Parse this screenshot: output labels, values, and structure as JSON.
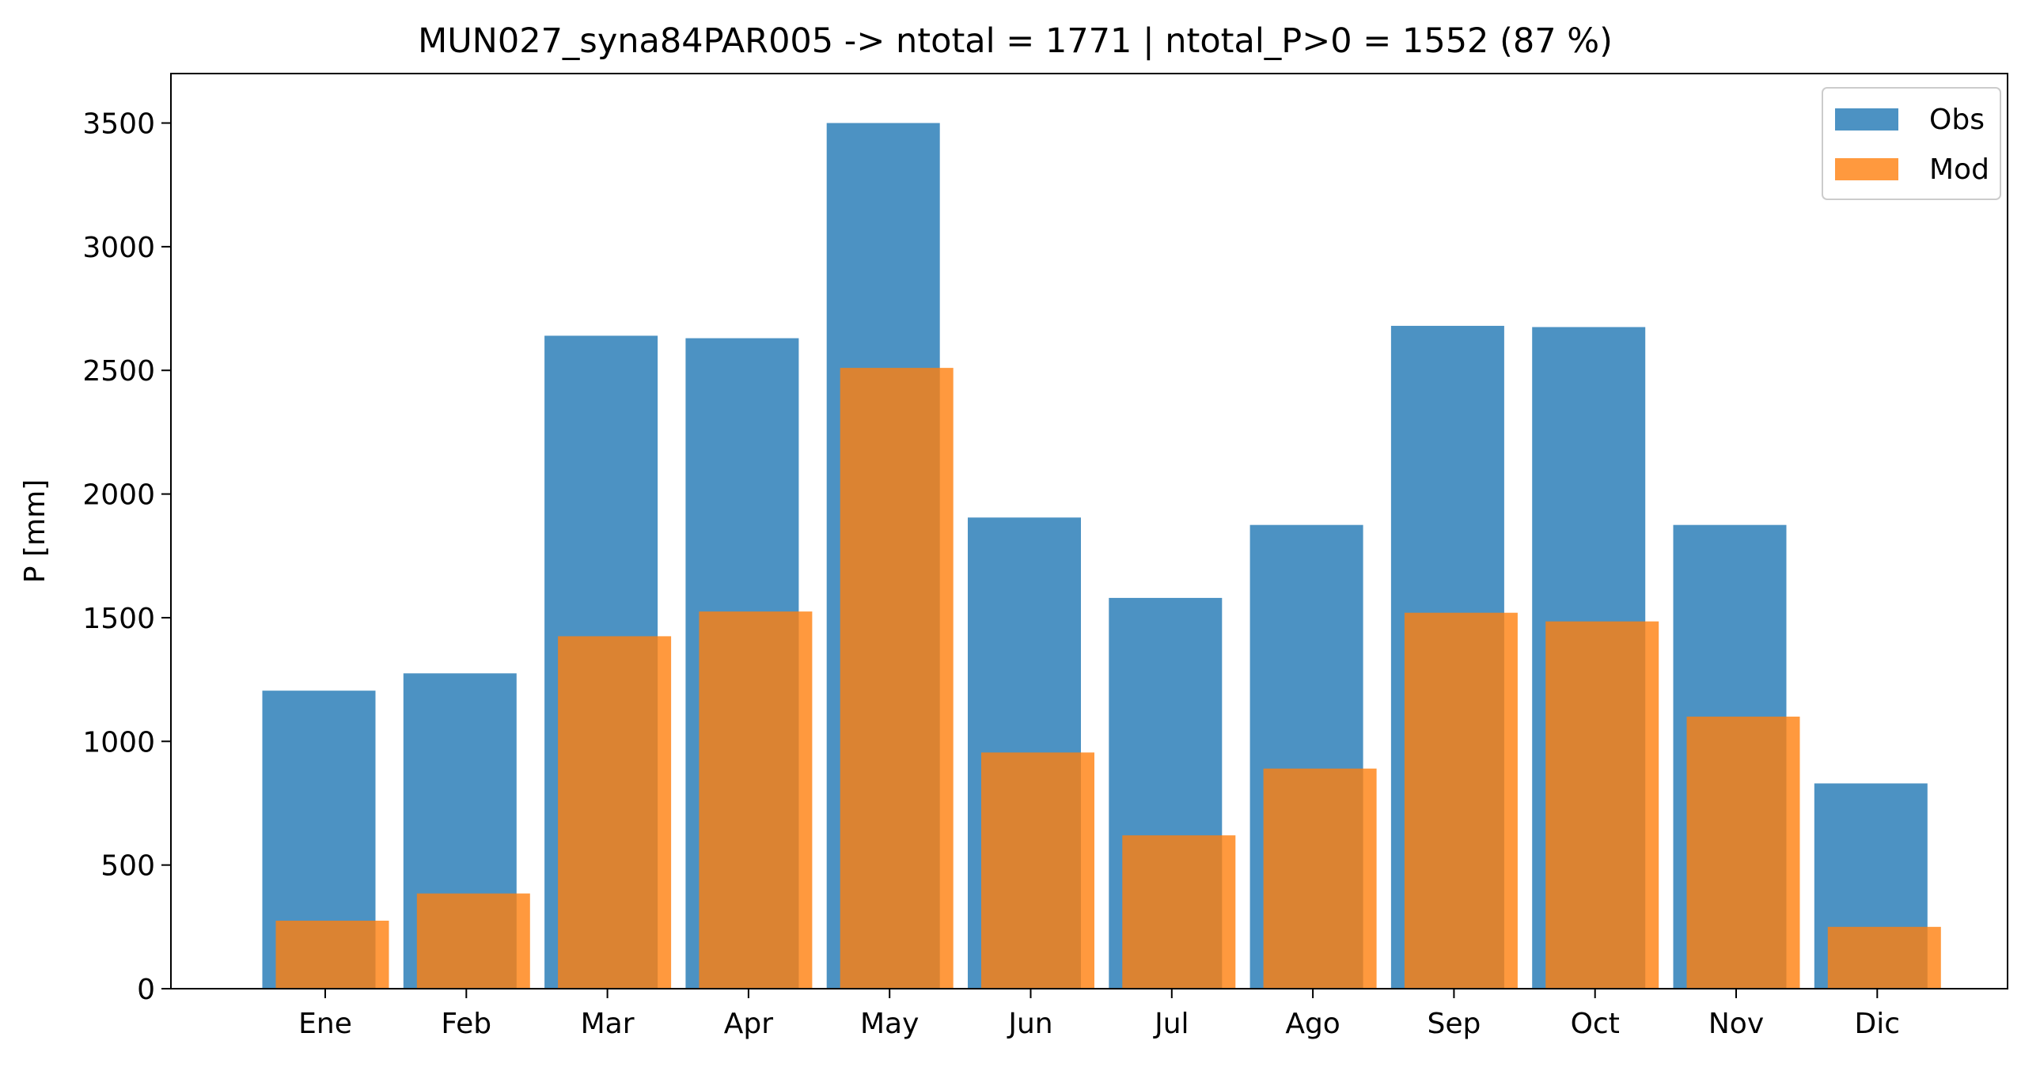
{
  "chart_data": {
    "type": "bar",
    "title": "MUN027_syna84PAR005 -> ntotal = 1771 | ntotal_P>0 = 1552 (87 %)",
    "xlabel": "",
    "ylabel": "P [mm]",
    "ylim": [
      0,
      3700
    ],
    "yticks": [
      0,
      500,
      1000,
      1500,
      2000,
      2500,
      3000,
      3500
    ],
    "grid": false,
    "legend_position": "top-right",
    "categories": [
      "Ene",
      "Feb",
      "Mar",
      "Apr",
      "May",
      "Jun",
      "Jul",
      "Ago",
      "Sep",
      "Oct",
      "Nov",
      "Dic"
    ],
    "series": [
      {
        "name": "Obs",
        "color": "#1f77b4",
        "values": [
          1205,
          1275,
          2640,
          2630,
          3500,
          1905,
          1580,
          1875,
          2680,
          2675,
          1875,
          830
        ]
      },
      {
        "name": "Mod",
        "color": "#ff7f0e",
        "values": [
          275,
          385,
          1425,
          1525,
          2510,
          955,
          620,
          890,
          1520,
          1485,
          1100,
          250
        ]
      }
    ]
  }
}
